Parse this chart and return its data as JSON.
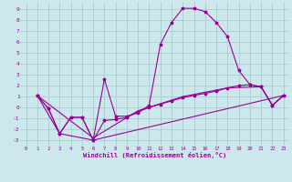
{
  "background_color": "#cce8ec",
  "grid_color": "#aacccc",
  "line_color": "#990099",
  "xlabel": "Windchill (Refroidissement éolien,°C)",
  "xlim": [
    -0.5,
    23.5
  ],
  "ylim": [
    -3.5,
    9.7
  ],
  "xticks": [
    0,
    1,
    2,
    3,
    4,
    5,
    6,
    7,
    8,
    9,
    10,
    11,
    12,
    13,
    14,
    15,
    16,
    17,
    18,
    19,
    20,
    21,
    22,
    23
  ],
  "yticks": [
    -3,
    -2,
    -1,
    0,
    1,
    2,
    3,
    4,
    5,
    6,
    7,
    8,
    9
  ],
  "series1": [
    [
      1,
      1.1
    ],
    [
      2,
      -0.1
    ],
    [
      3,
      -2.4
    ],
    [
      4,
      -0.9
    ],
    [
      5,
      -0.9
    ],
    [
      6,
      -3.0
    ],
    [
      7,
      2.6
    ],
    [
      8,
      -0.8
    ],
    [
      9,
      -0.8
    ],
    [
      10,
      -0.5
    ],
    [
      11,
      0.2
    ],
    [
      12,
      5.8
    ],
    [
      13,
      7.8
    ],
    [
      14,
      9.1
    ],
    [
      15,
      9.1
    ],
    [
      16,
      8.8
    ],
    [
      17,
      7.8
    ],
    [
      18,
      6.5
    ],
    [
      19,
      3.4
    ],
    [
      20,
      2.1
    ],
    [
      21,
      1.9
    ],
    [
      22,
      0.2
    ],
    [
      23,
      1.1
    ]
  ],
  "series2": [
    [
      1,
      1.1
    ],
    [
      2,
      -0.1
    ],
    [
      3,
      -2.4
    ],
    [
      4,
      -0.9
    ],
    [
      5,
      -0.9
    ],
    [
      6,
      -3.0
    ],
    [
      7,
      -1.2
    ],
    [
      8,
      -1.1
    ],
    [
      9,
      -0.9
    ],
    [
      10,
      -0.4
    ],
    [
      11,
      0.0
    ],
    [
      12,
      0.3
    ],
    [
      13,
      0.6
    ],
    [
      14,
      0.9
    ],
    [
      15,
      1.1
    ],
    [
      16,
      1.3
    ],
    [
      17,
      1.5
    ],
    [
      18,
      1.8
    ],
    [
      19,
      2.0
    ],
    [
      20,
      2.1
    ],
    [
      21,
      1.9
    ],
    [
      22,
      0.2
    ],
    [
      23,
      1.1
    ]
  ],
  "series3": [
    [
      1,
      1.1
    ],
    [
      3,
      -2.4
    ],
    [
      6,
      -3.0
    ],
    [
      23,
      1.1
    ]
  ],
  "series4": [
    [
      1,
      1.1
    ],
    [
      6,
      -2.8
    ],
    [
      10,
      -0.3
    ],
    [
      14,
      1.0
    ],
    [
      18,
      1.8
    ],
    [
      21,
      1.9
    ],
    [
      22,
      0.2
    ],
    [
      23,
      1.1
    ]
  ]
}
